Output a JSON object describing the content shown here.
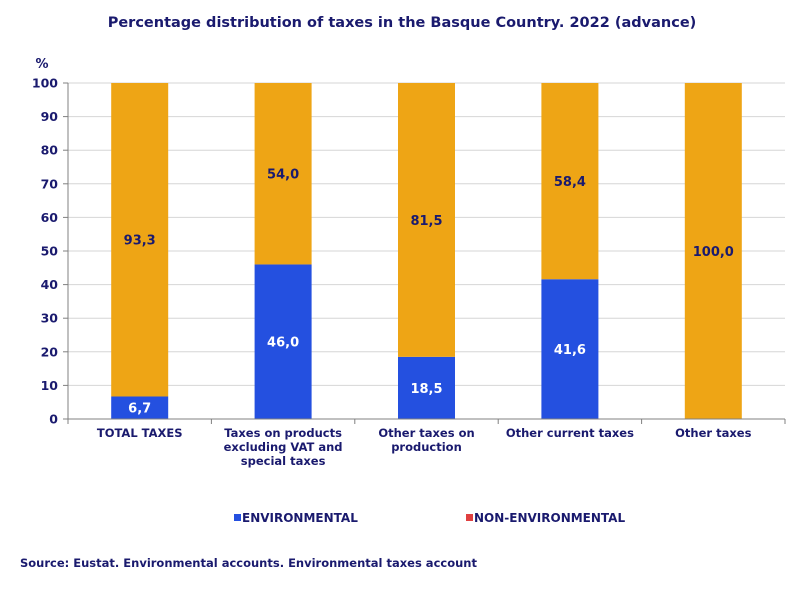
{
  "chart_data": {
    "type": "bar",
    "stacked": true,
    "title": "Percentage distribution of taxes in the Basque Country. 2022 (advance)",
    "ylabel": "%",
    "ylim": [
      0,
      100
    ],
    "yticks": [
      0,
      10,
      20,
      30,
      40,
      50,
      60,
      70,
      80,
      90,
      100
    ],
    "grid": true,
    "legend_position": "bottom",
    "categories": [
      [
        "TOTAL TAXES"
      ],
      [
        "Taxes on products",
        "excluding VAT and",
        "special taxes"
      ],
      [
        "Other taxes on",
        "production"
      ],
      [
        "Other current taxes"
      ],
      [
        "Other taxes"
      ]
    ],
    "series": [
      {
        "name": "ENVIRONMENTAL",
        "color": "#2450e0",
        "values": [
          6.7,
          46.0,
          18.5,
          41.6,
          0.0
        ],
        "labels": [
          "6,7",
          "46,0",
          "18,5",
          "41,6",
          ""
        ]
      },
      {
        "name": "NON-ENVIRONMENTAL",
        "color": "#eea515",
        "legend_color": "#e04040",
        "values": [
          93.3,
          54.0,
          81.5,
          58.4,
          100.0
        ],
        "labels": [
          "93,3",
          "54,0",
          "81,5",
          "58,4",
          "100,0"
        ]
      }
    ],
    "source": "Source: Eustat. Environmental accounts. Environmental taxes account"
  }
}
